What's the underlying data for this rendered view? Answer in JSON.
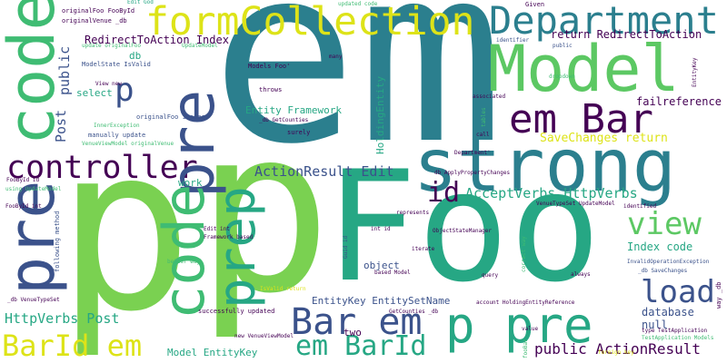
{
  "colors": {
    "teal": "#2b7f8e",
    "green": "#5cc863",
    "lightgreen": "#7ad151",
    "yellow": "#dde318",
    "purple": "#440154",
    "indigo": "#3b528b",
    "sea": "#26a784",
    "mint": "#3fbc73"
  },
  "words": {
    "em_big": "em",
    "p_big": "p",
    "foo": "Foo",
    "strong": "strong",
    "model": "Model",
    "formcollection": "formCollection",
    "department": "Department",
    "em_bar": "em Bar",
    "controller": "controller",
    "pre_left": "pre",
    "code_left": "code",
    "pre_mid": "pre",
    "code_mid": "code",
    "prep": "prep",
    "p_small": "p",
    "bar_em": "Bar em",
    "p_pre": "p pre",
    "barid_em": "BarId em",
    "em_barid": "em BarId",
    "view": "view",
    "load": "load",
    "id": "id",
    "acceptverbs": "AcceptVerbs HttpVerbs",
    "actionresult_edit": "ActionResult Edit",
    "httpverbs_post": "HttpVerbs Post",
    "public_actionresult": "public ActionResult",
    "savechanges_return": "SaveChanges return",
    "entity_framework": "Entity Framework",
    "redirect_index": "RedirectToAction Index",
    "return_redirect": "return RedirectToAction",
    "failreference": "failreference",
    "index_code": "Index code",
    "entitykey_setname": "EntityKey EntitySetName",
    "model_entitykey": "Model EntityKey",
    "database": "database",
    "null": "null",
    "object": "object",
    "select": "select",
    "work": "work",
    "post": "Post",
    "public_v": "public",
    "holdingentity": "HoldingEntity",
    "two": "two",
    "db": "db",
    "models_foo": "Models Foo'",
    "throws": "throws",
    "surely": "surely",
    "originalfoo_foobyid": "originalFoo FooById",
    "originalvenue_db": "originalVenue _db",
    "edit_god": "Edit God",
    "updated_code": "updated code",
    "given": "Given",
    "update_originalfoo": "update originalFoo",
    "updatemodel": "UpdateModel",
    "modelstate_isvalid": "ModelState IsValid",
    "view_new": "View new",
    "originalfoo_instead": "originalFoo instead",
    "manually_update": "manually update",
    "innerexception": "InnerException",
    "venueviewmodel_originalvenue": "VenueViewModel originalVenue",
    "foobyid_id": "FooById id",
    "using_updatemodel": "using UpdateModel",
    "identifier": "identifier",
    "many": "many",
    "public_right": "public",
    "dropdown": "dropdown",
    "associated": "associated",
    "call": "call",
    "identified": "identified",
    "invalidoperation": "InvalidOperationException",
    "db_savechanges": "_db SaveChanges",
    "represents": "represents",
    "edit_int": "Edit int",
    "framework_based": "Framework based",
    "following_method": "following method",
    "better_way": "better way",
    "int_id": "int id",
    "iterate": "iterate",
    "based_model": "based Model",
    "account_holdingref": "account HoldingEntityReference",
    "getcounties_db": "GetCounties _db",
    "query": "query",
    "successfully_updated": "successfully updated",
    "new_venueviewmodel": "new VenueViewModel",
    "db_venuetypeset": "_db VenueTypeSet",
    "foobyid_int": "FooById int",
    "isvalid_return": "IsValid return",
    "db_getcounties": "_db GetCounties",
    "type_testapp": "type TestApplication",
    "testapp_models": "TestApplication Models",
    "foreign_key": "foreign key",
    "venuetypeset_updatemodel": "VenueTypeSet UpdateModel",
    "db_applyproperty": "db ApplyPropertyChanges",
    "way_db": "way _db",
    "entitykey_v": "EntityKey",
    "guid_id": "Guid id",
    "department_q": "Department'",
    "tables": "tables",
    "foobar": "fooBar",
    "value": "value",
    "objectstate": "ObjectStateManager",
    "correct_way": "correct way",
    "always": "always"
  }
}
